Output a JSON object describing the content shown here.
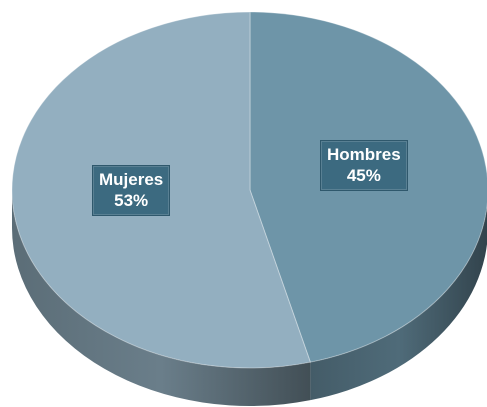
{
  "chart_data": {
    "type": "pie",
    "title": "",
    "slices": [
      {
        "name": "Hombres",
        "percent_label": "45%",
        "value": 45,
        "color": "#6e95a8"
      },
      {
        "name": "Mujeres",
        "percent_label": "53%",
        "value": 53,
        "color": "#93afc0"
      }
    ],
    "label_box_color": "#3c6a80",
    "three_d": true
  }
}
